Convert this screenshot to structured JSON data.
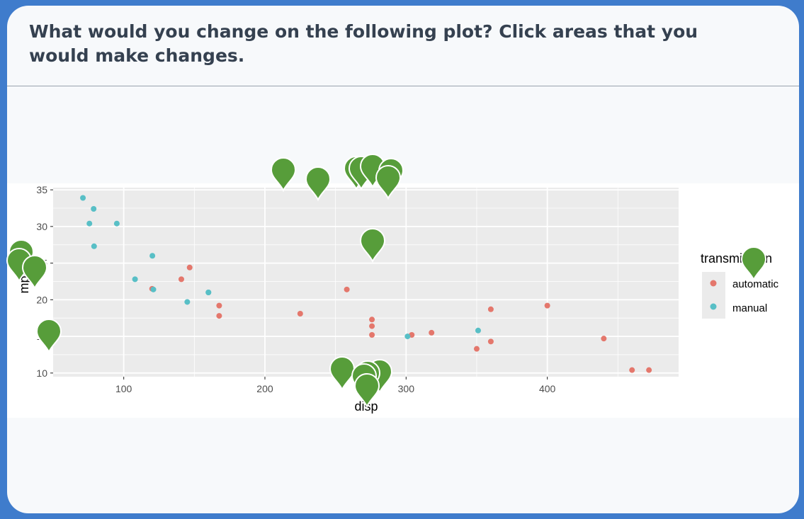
{
  "question": "What would you change on the following plot? Click areas that you would make changes.",
  "colors": {
    "automatic": "#e4776c",
    "manual": "#58bfc6",
    "marker": "#579d3a",
    "panel": "#ebebeb",
    "page_bg": "#3f7ccc"
  },
  "chart_data": {
    "type": "scatter",
    "xlabel": "disp",
    "ylabel": "mpg",
    "xlim": [
      50,
      493
    ],
    "ylim": [
      9.5,
      35.3
    ],
    "x_ticks": [
      100,
      200,
      300,
      400
    ],
    "y_ticks": [
      10,
      15,
      20,
      25,
      30,
      35
    ],
    "grid": true,
    "legend": {
      "title": "transmission",
      "position": "right",
      "entries": [
        "automatic",
        "manual"
      ]
    },
    "series": [
      {
        "name": "automatic",
        "points": [
          [
            258,
            21.4
          ],
          [
            360,
            18.7
          ],
          [
            225,
            18.1
          ],
          [
            360,
            14.3
          ],
          [
            146.7,
            24.4
          ],
          [
            140.8,
            22.8
          ],
          [
            167.6,
            19.2
          ],
          [
            167.6,
            17.8
          ],
          [
            275.8,
            16.4
          ],
          [
            275.8,
            17.3
          ],
          [
            275.8,
            15.2
          ],
          [
            472,
            10.4
          ],
          [
            460,
            10.4
          ],
          [
            440,
            14.7
          ],
          [
            120.1,
            21.5
          ],
          [
            318,
            15.5
          ],
          [
            304,
            15.2
          ],
          [
            350,
            13.3
          ],
          [
            400,
            19.2
          ]
        ]
      },
      {
        "name": "manual",
        "points": [
          [
            160,
            21.0
          ],
          [
            160,
            21.0
          ],
          [
            108,
            22.8
          ],
          [
            78.7,
            32.4
          ],
          [
            75.7,
            30.4
          ],
          [
            71.1,
            33.9
          ],
          [
            79,
            27.3
          ],
          [
            120.3,
            26.0
          ],
          [
            95.1,
            30.4
          ],
          [
            351,
            15.8
          ],
          [
            145,
            19.7
          ],
          [
            301,
            15.0
          ],
          [
            121,
            21.4
          ]
        ]
      }
    ]
  },
  "click_markers": [
    [
      400,
      243
    ],
    [
      449,
      256
    ],
    [
      503,
      241
    ],
    [
      510,
      241
    ],
    [
      526,
      238
    ],
    [
      552,
      244
    ],
    [
      548,
      254
    ],
    [
      526,
      343
    ],
    [
      30,
      359
    ],
    [
      27,
      371
    ],
    [
      49,
      381
    ],
    [
      69,
      471
    ],
    [
      1064,
      369
    ],
    [
      483,
      524
    ],
    [
      536,
      528
    ],
    [
      519,
      530
    ],
    [
      514,
      534
    ],
    [
      518,
      548
    ]
  ]
}
